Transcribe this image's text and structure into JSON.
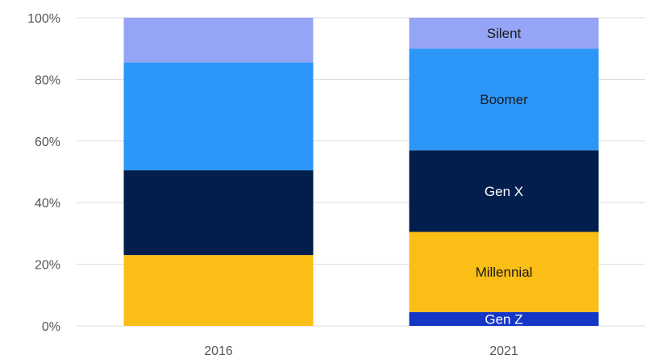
{
  "chart_data": {
    "type": "bar",
    "stacked": true,
    "categories": [
      "2016",
      "2021"
    ],
    "series": [
      {
        "name": "Gen Z",
        "color": "#1537C8",
        "values": [
          0,
          4.5
        ],
        "label_color": "#ffffff"
      },
      {
        "name": "Millennial",
        "color": "#FBBE16",
        "values": [
          23,
          26
        ],
        "label_color": "#1a1a1a"
      },
      {
        "name": "Gen X",
        "color": "#011E4C",
        "values": [
          27.5,
          26.5
        ],
        "label_color": "#ffffff"
      },
      {
        "name": "Boomer",
        "color": "#2C96F8",
        "values": [
          35,
          33
        ],
        "label_color": "#1a1a1a"
      },
      {
        "name": "Silent",
        "color": "#96A4F5",
        "values": [
          14.5,
          10
        ],
        "label_color": "#1a1a1a"
      }
    ],
    "segment_labels_category": "2021",
    "ylim": [
      0,
      100
    ],
    "yticks": [
      0,
      20,
      40,
      60,
      80,
      100
    ],
    "ytick_labels": [
      "0%",
      "20%",
      "40%",
      "60%",
      "80%",
      "100%"
    ],
    "grid": true,
    "title": "",
    "xlabel": "",
    "ylabel": ""
  }
}
